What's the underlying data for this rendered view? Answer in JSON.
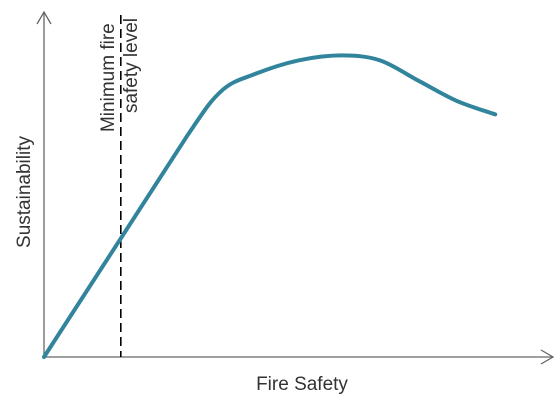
{
  "chart_data": {
    "type": "line",
    "title": "",
    "xlabel": "Fire Safety",
    "ylabel": "Sustainability",
    "x_ticks": [],
    "y_ticks": [],
    "grid": false,
    "xlim": [
      0,
      100
    ],
    "ylim": [
      0,
      100
    ],
    "series": [
      {
        "color": "#31849B",
        "x": [
          0,
          15,
          30,
          37,
          44,
          53,
          62,
          70,
          78,
          86,
          94
        ],
        "y": [
          0,
          33,
          66,
          79,
          84,
          88,
          89.5,
          88,
          82,
          76,
          72
        ]
      }
    ],
    "reference_lines": [
      {
        "orientation": "vertical",
        "x": 16,
        "style": "dashed",
        "color": "#000000",
        "label_lines": [
          "Minimum fire",
          "safety level"
        ]
      }
    ],
    "colors": {
      "axis": "#666666",
      "text": "#333333"
    }
  }
}
